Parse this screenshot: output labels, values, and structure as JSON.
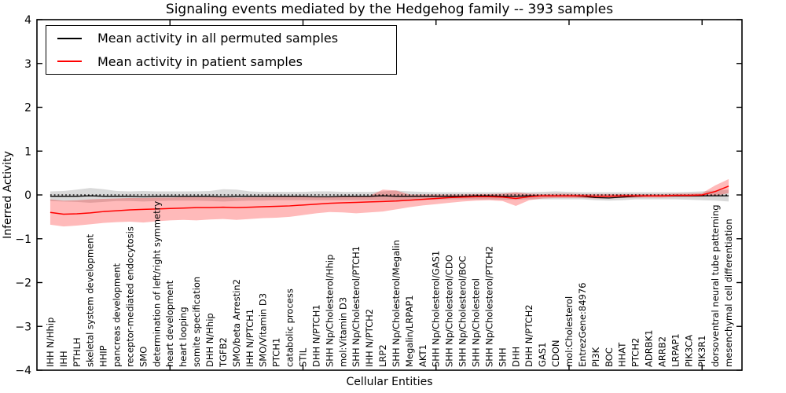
{
  "title": "Signaling events mediated by the Hedgehog family -- 393 samples",
  "axes": {
    "xlabel": "Cellular Entities",
    "ylabel": "Inferred Activity",
    "ylim": [
      -4,
      4
    ],
    "yticks": [
      4,
      3,
      2,
      1,
      0,
      -1,
      -2,
      -3,
      -4
    ]
  },
  "legend": {
    "entries": [
      {
        "label": "Mean activity in all permuted samples",
        "color": "#000000"
      },
      {
        "label": "Mean activity in patient samples",
        "color": "#ff0000"
      }
    ]
  },
  "chart_data": {
    "type": "line",
    "title": "Signaling events mediated by the Hedgehog family -- 393 samples",
    "xlabel": "Cellular Entities",
    "ylabel": "Inferred Activity",
    "ylim": [
      -4,
      4
    ],
    "grid": false,
    "legend_position": "upper left",
    "zero_line_style": "dotted",
    "categories": [
      "IHH N/Hhip",
      "IHH",
      "PTHLH",
      "skeletal system development",
      "HHIP",
      "pancreas development",
      "receptor-mediated endocytosis",
      "SMO",
      "determination of left/right symmetry",
      "heart development",
      "heart looping",
      "somite specification",
      "DHH N/Hhip",
      "TGFB2",
      "SMO/beta Arrestin2",
      "IHH N/PTCH1",
      "SMO/Vitamin D3",
      "PTCH1",
      "catabolic process",
      "STIL",
      "DHH N/PTCH1",
      "SHH Np/Cholesterol/Hhip",
      "mol:Vitamin D3",
      "SHH Np/Cholesterol/PTCH1",
      "IHH N/PTCH2",
      "LRP2",
      "SHH Np/Cholesterol/Megalin",
      "Megalin/LRPAP1",
      "AKT1",
      "SHH Np/Cholesterol/GAS1",
      "SHH Np/Cholesterol/CDO",
      "SHH Np/Cholesterol/BOC",
      "SHH Np/Cholesterol",
      "SHH Np/Cholesterol/PTCH2",
      "SHH",
      "DHH",
      "DHH N/PTCH2",
      "GAS1",
      "CDON",
      "mol:Cholesterol",
      "EntrezGene:84976",
      "PI3K",
      "BOC",
      "HHAT",
      "PTCH2",
      "ADRBK1",
      "ARRB2",
      "LRPAP1",
      "PIK3CA",
      "PIK3R1",
      "dorsoventral neural tube patterning",
      "mesenchymal cell differentiation"
    ],
    "series": [
      {
        "name": "Mean activity in all permuted samples",
        "color": "#000000",
        "line_width": 1.3,
        "band_color": "rgba(0,0,0,0.15)",
        "values": [
          -0.03,
          -0.03,
          -0.03,
          -0.02,
          -0.03,
          -0.03,
          -0.03,
          -0.04,
          -0.03,
          -0.03,
          -0.03,
          -0.03,
          -0.03,
          -0.04,
          -0.03,
          -0.03,
          -0.03,
          -0.03,
          -0.03,
          -0.03,
          -0.04,
          -0.04,
          -0.03,
          -0.03,
          -0.03,
          -0.02,
          -0.03,
          -0.03,
          -0.03,
          -0.03,
          -0.03,
          -0.03,
          -0.02,
          -0.02,
          -0.03,
          -0.03,
          -0.02,
          -0.02,
          -0.02,
          -0.02,
          -0.03,
          -0.06,
          -0.07,
          -0.05,
          -0.03,
          -0.02,
          -0.02,
          -0.02,
          -0.02,
          -0.02,
          -0.02,
          -0.02
        ],
        "band_upper": [
          0.08,
          0.09,
          0.12,
          0.16,
          0.13,
          0.09,
          0.08,
          0.09,
          0.08,
          0.08,
          0.08,
          0.08,
          0.09,
          0.13,
          0.12,
          0.08,
          0.07,
          0.07,
          0.07,
          0.07,
          0.08,
          0.08,
          0.07,
          0.07,
          0.07,
          0.08,
          0.1,
          0.08,
          0.07,
          0.06,
          0.06,
          0.06,
          0.06,
          0.06,
          0.06,
          0.06,
          0.06,
          0.07,
          0.08,
          0.07,
          0.06,
          0.06,
          0.06,
          0.06,
          0.06,
          0.06,
          0.06,
          0.06,
          0.07,
          0.08,
          0.1,
          0.12
        ],
        "band_lower": [
          -0.14,
          -0.15,
          -0.16,
          -0.18,
          -0.16,
          -0.14,
          -0.14,
          -0.15,
          -0.14,
          -0.13,
          -0.13,
          -0.13,
          -0.14,
          -0.15,
          -0.14,
          -0.13,
          -0.13,
          -0.12,
          -0.12,
          -0.12,
          -0.12,
          -0.12,
          -0.12,
          -0.12,
          -0.12,
          -0.12,
          -0.13,
          -0.12,
          -0.11,
          -0.11,
          -0.1,
          -0.1,
          -0.1,
          -0.1,
          -0.11,
          -0.11,
          -0.1,
          -0.1,
          -0.1,
          -0.1,
          -0.1,
          -0.12,
          -0.13,
          -0.12,
          -0.1,
          -0.1,
          -0.1,
          -0.1,
          -0.11,
          -0.12,
          -0.13,
          -0.15
        ]
      },
      {
        "name": "Mean activity in patient samples",
        "color": "#ff0000",
        "line_width": 1.5,
        "band_color": "rgba(255,0,0,0.27)",
        "values": [
          -0.4,
          -0.44,
          -0.43,
          -0.41,
          -0.38,
          -0.36,
          -0.34,
          -0.33,
          -0.32,
          -0.31,
          -0.3,
          -0.29,
          -0.29,
          -0.28,
          -0.29,
          -0.28,
          -0.27,
          -0.26,
          -0.25,
          -0.23,
          -0.21,
          -0.19,
          -0.18,
          -0.17,
          -0.16,
          -0.15,
          -0.14,
          -0.12,
          -0.1,
          -0.08,
          -0.06,
          -0.05,
          -0.04,
          -0.04,
          -0.05,
          -0.08,
          -0.04,
          -0.02,
          -0.02,
          -0.02,
          -0.02,
          -0.03,
          -0.03,
          -0.02,
          -0.02,
          -0.02,
          -0.02,
          -0.01,
          -0.01,
          0.0,
          0.08,
          0.2
        ],
        "band_upper": [
          -0.1,
          -0.13,
          -0.12,
          -0.1,
          -0.09,
          -0.08,
          -0.07,
          -0.07,
          -0.06,
          -0.06,
          -0.05,
          -0.05,
          -0.05,
          -0.05,
          -0.06,
          -0.05,
          -0.05,
          -0.04,
          -0.04,
          -0.04,
          -0.03,
          -0.03,
          -0.03,
          -0.03,
          -0.02,
          0.12,
          0.1,
          0.01,
          0.01,
          0.01,
          0.01,
          0.01,
          0.02,
          0.02,
          0.03,
          0.06,
          0.03,
          0.02,
          0.03,
          0.03,
          0.02,
          0.02,
          0.02,
          0.02,
          0.02,
          0.02,
          0.02,
          0.03,
          0.03,
          0.04,
          0.22,
          0.36
        ],
        "band_lower": [
          -0.68,
          -0.72,
          -0.7,
          -0.67,
          -0.64,
          -0.62,
          -0.61,
          -0.63,
          -0.6,
          -0.58,
          -0.57,
          -0.58,
          -0.56,
          -0.55,
          -0.57,
          -0.55,
          -0.53,
          -0.52,
          -0.5,
          -0.46,
          -0.42,
          -0.39,
          -0.4,
          -0.42,
          -0.4,
          -0.38,
          -0.33,
          -0.28,
          -0.24,
          -0.21,
          -0.18,
          -0.15,
          -0.13,
          -0.12,
          -0.14,
          -0.25,
          -0.12,
          -0.08,
          -0.07,
          -0.07,
          -0.07,
          -0.08,
          -0.08,
          -0.07,
          -0.06,
          -0.06,
          -0.06,
          -0.05,
          -0.05,
          -0.04,
          -0.02,
          0.04
        ]
      }
    ]
  }
}
